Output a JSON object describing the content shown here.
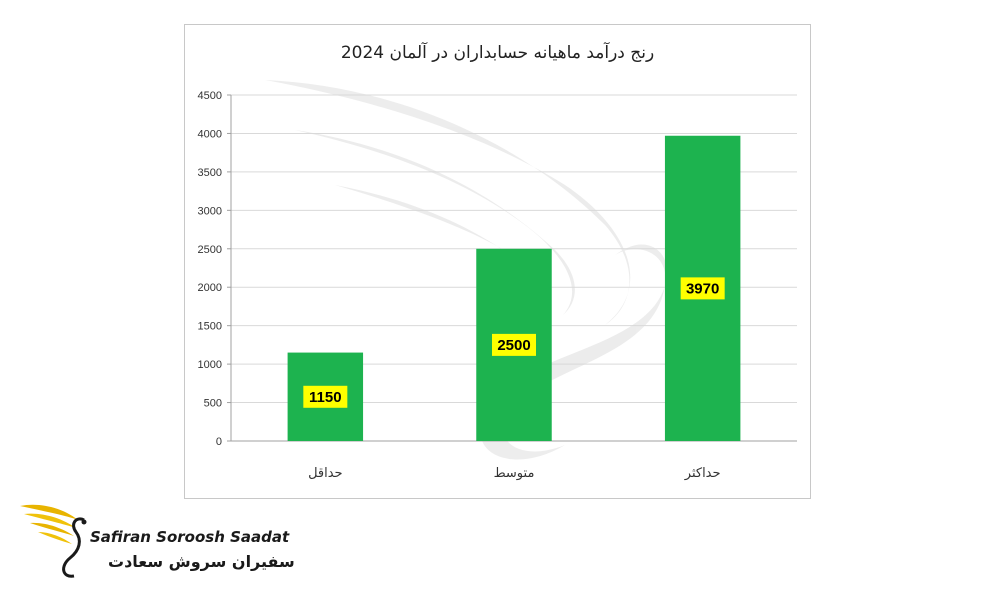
{
  "chart_data": {
    "type": "bar",
    "title": "رنج درآمد ماهیانه حسابداران در آلمان 2024",
    "categories": [
      "حداقل",
      "متوسط",
      "حداکثر"
    ],
    "values": [
      1150,
      2500,
      3970
    ],
    "data_labels": [
      "1150",
      "2500",
      "3970"
    ],
    "ylim": [
      0,
      4500
    ],
    "yticks": [
      "0",
      "500",
      "1000",
      "1500",
      "2000",
      "2500",
      "3000",
      "3500",
      "4000",
      "4500"
    ],
    "grid": true,
    "legend": "none",
    "bar_color": "#1db34f",
    "label_background": "#ffff00"
  },
  "logo": {
    "name_en": "Safiran Soroosh Saadat",
    "name_fa": "سفیران سروش سعادت",
    "accent_color": "#e8b400"
  }
}
